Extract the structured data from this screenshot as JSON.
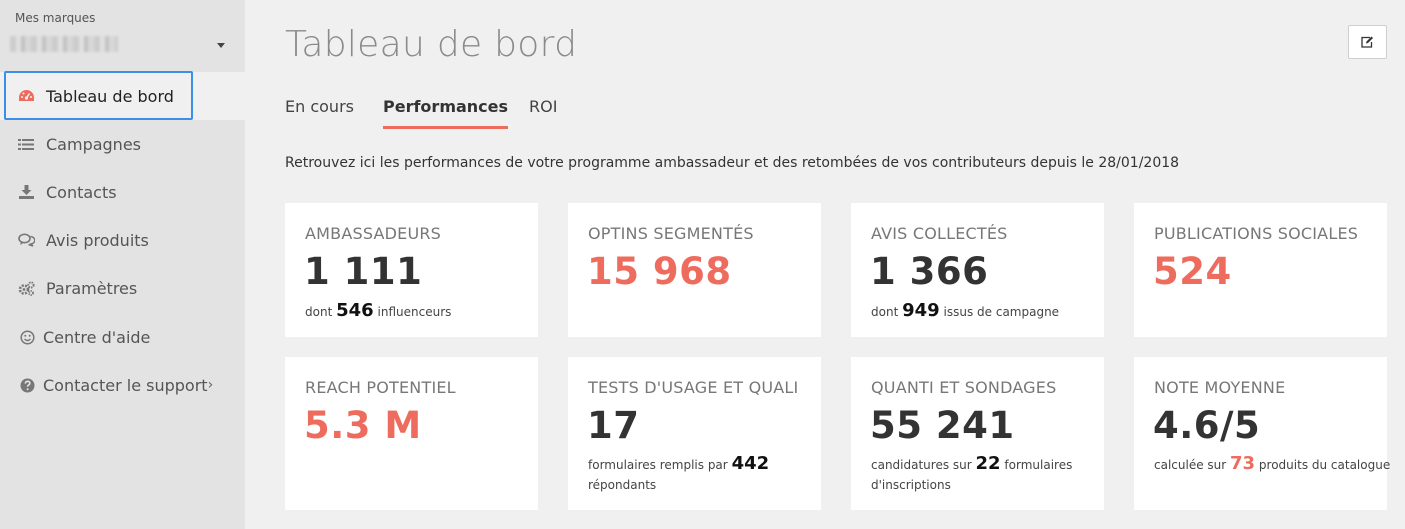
{
  "sidebar": {
    "brand_label": "Mes marques",
    "items": [
      {
        "label": "Tableau de bord",
        "icon": "dashboard-gauge-icon"
      },
      {
        "label": "Campagnes",
        "icon": "list-icon"
      },
      {
        "label": "Contacts",
        "icon": "download-icon"
      },
      {
        "label": "Avis produits",
        "icon": "comments-icon"
      },
      {
        "label": "Paramètres",
        "icon": "gears-icon"
      },
      {
        "label": "Centre d'aide",
        "icon": "smile-icon"
      },
      {
        "label": "Contacter le support",
        "icon": "question-circle-icon"
      }
    ],
    "submenu_arrow": "›"
  },
  "header": {
    "title": "Tableau de bord",
    "edit_icon": "edit-icon"
  },
  "tabs": [
    "En cours",
    "Performances",
    "ROI"
  ],
  "intro": "Retrouvez ici les performances de votre programme ambassadeur et des retombées de vos contributeurs depuis le 28/01/2018",
  "cards": [
    {
      "title": "AMBASSADEURS",
      "value": "1 111",
      "sub_pre": "dont",
      "sub_num": "546",
      "sub_post": "influenceurs"
    },
    {
      "title": "OPTINS SEGMENTÉS",
      "value": "15 968"
    },
    {
      "title": "AVIS COLLECTÉS",
      "value": "1 366",
      "sub_pre": "dont",
      "sub_num": "949",
      "sub_post": "issus de campagne"
    },
    {
      "title": "PUBLICATIONS SOCIALES",
      "value": "524"
    },
    {
      "title": "REACH POTENTIEL",
      "value": "5.3 M"
    },
    {
      "title": "TESTS D'USAGE ET QUALI",
      "value": "17",
      "sub_pre": "formulaires remplis par",
      "sub_num": "442",
      "sub_post": "répondants"
    },
    {
      "title": "QUANTI ET SONDAGES",
      "value": "55 241",
      "sub_pre": "candidatures sur",
      "sub_num": "22",
      "sub_post": "formulaires d'inscriptions"
    },
    {
      "title": "NOTE MOYENNE",
      "value": "4.6/5",
      "sub_pre": "calculée sur",
      "sub_num": "73",
      "sub_post": "produits du catalogue"
    }
  ],
  "colors": {
    "accent": "#ee6c5e",
    "focus_outline": "#3a8fe6"
  }
}
